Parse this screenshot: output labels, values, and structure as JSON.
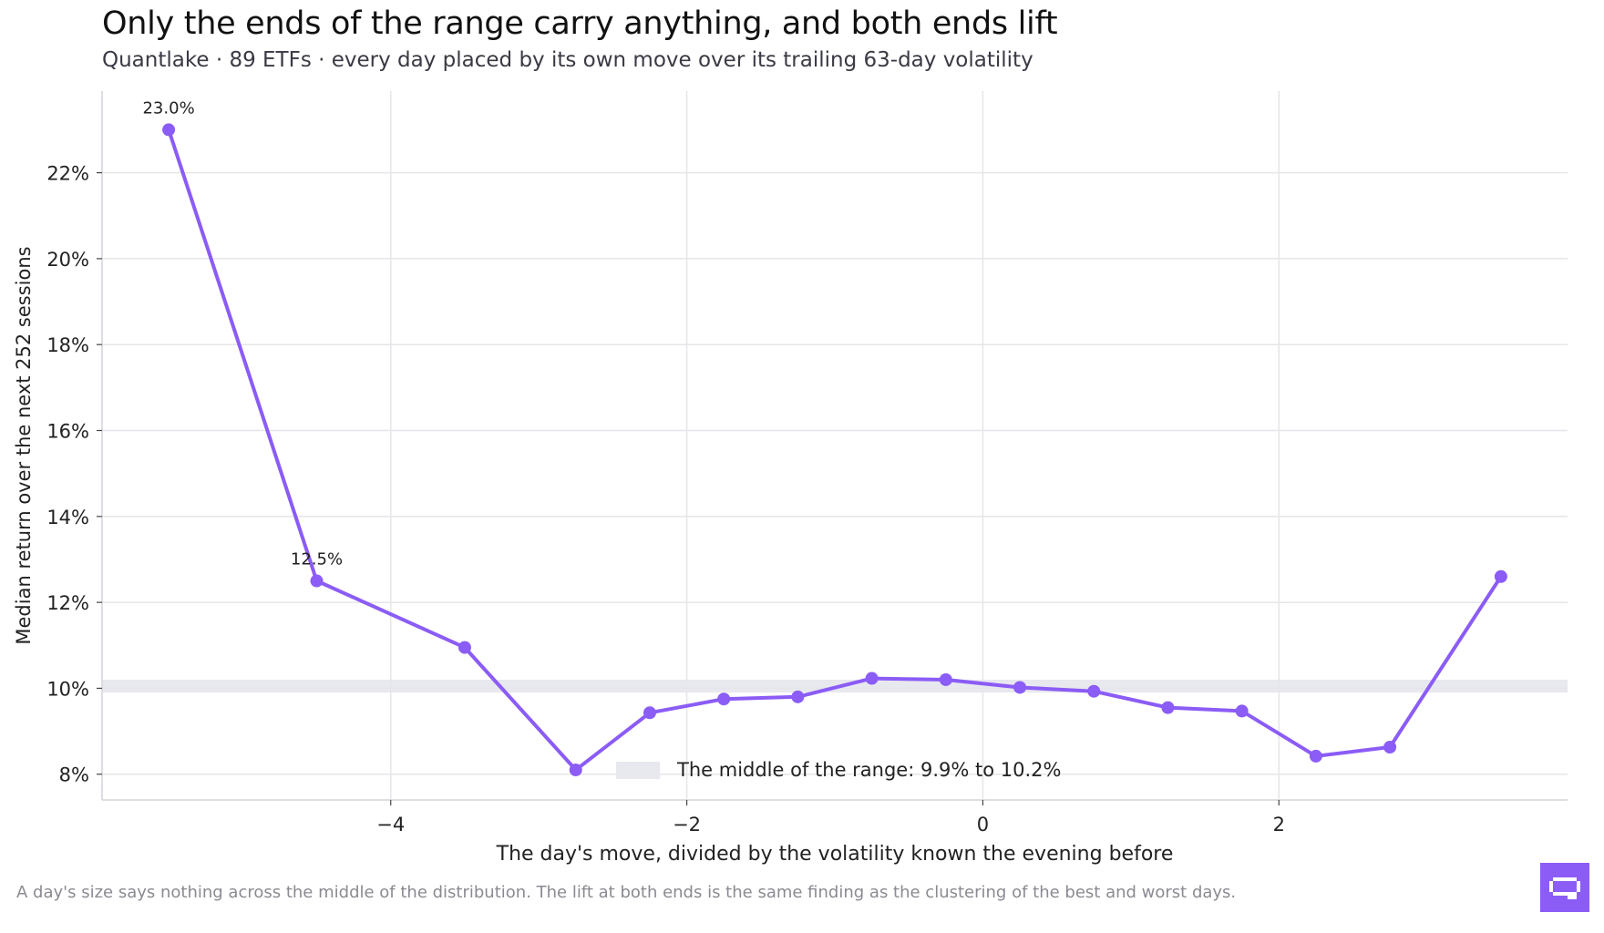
{
  "title": "Only the ends of the range carry anything, and both ends lift",
  "subtitle": "Quantlake · 89 ETFs · every day placed by its own move over its trailing 63-day volatility",
  "footnote": "A day's size says nothing across the middle of the distribution. The lift at both ends is the same finding as the clustering of the best and worst days.",
  "logo_icon": "quantlake-logo-icon",
  "colors": {
    "line": "#8b5cf6",
    "band": "#e8e8ef",
    "grid": "#e6e6ea"
  },
  "chart_data": {
    "type": "line",
    "xlabel": "The day's move, divided by the volatility known the evening before",
    "ylabel": "Median return over the next 252 sessions",
    "xlim": [
      -5.95,
      3.95
    ],
    "ylim": [
      7.4,
      23.9
    ],
    "x_ticks": [
      -4,
      -2,
      0,
      2
    ],
    "x_tick_labels": [
      "−4",
      "−2",
      "0",
      "2"
    ],
    "y_ticks": [
      8,
      10,
      12,
      14,
      16,
      18,
      20,
      22
    ],
    "y_tick_labels": [
      "8%",
      "10%",
      "12%",
      "14%",
      "16%",
      "18%",
      "20%",
      "22%"
    ],
    "grid": true,
    "series": [
      {
        "x": [
          -5.5,
          -4.5,
          -3.5,
          -2.75,
          -2.25,
          -1.75,
          -1.25,
          -0.75,
          -0.25,
          0.25,
          0.75,
          1.25,
          1.75,
          2.25,
          2.75,
          3.5
        ],
        "y": [
          23.0,
          12.5,
          10.95,
          8.1,
          9.43,
          9.75,
          9.8,
          10.23,
          10.2,
          10.02,
          9.93,
          9.55,
          9.47,
          8.42,
          8.63,
          12.6
        ]
      }
    ],
    "annotations": [
      {
        "x": -5.5,
        "y": 23.0,
        "text": "23.0%"
      },
      {
        "x": -4.5,
        "y": 12.5,
        "text": "12.5%"
      }
    ],
    "band": {
      "y0": 9.9,
      "y1": 10.2,
      "label": "The middle of the range: 9.9% to 10.2%"
    }
  }
}
